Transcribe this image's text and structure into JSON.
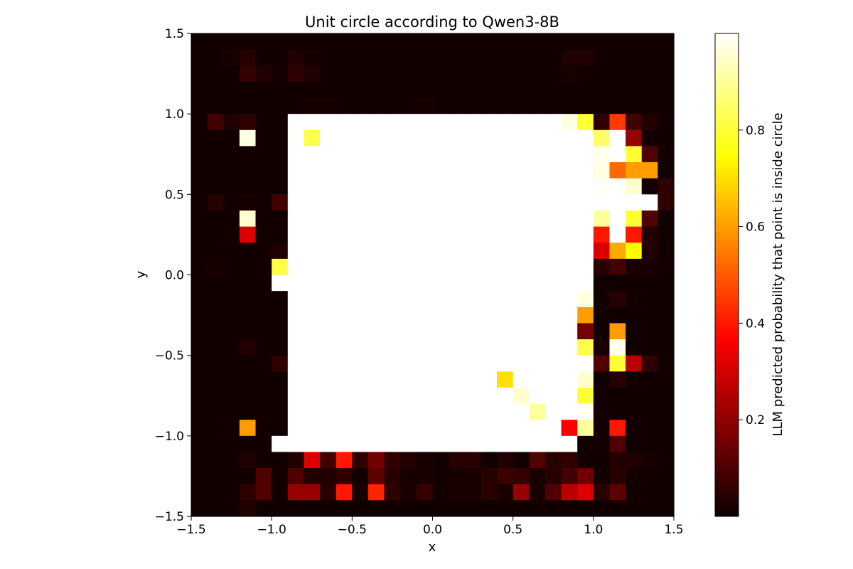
{
  "chart_data": {
    "type": "heatmap",
    "title": "Unit circle according to Qwen3-8B",
    "xlabel": "x",
    "ylabel": "y",
    "xlim": [
      -1.5,
      1.5
    ],
    "ylim": [
      -1.5,
      1.5
    ],
    "x_ticks": [
      "−1.5",
      "−1.0",
      "−0.5",
      "0.0",
      "0.5",
      "1.0",
      "1.5"
    ],
    "y_ticks": [
      "1.5",
      "1.0",
      "0.5",
      "0.0",
      "−0.5",
      "−1.0",
      "−1.5"
    ],
    "x_tick_values": [
      -1.5,
      -1.0,
      -0.5,
      0.0,
      0.5,
      1.0,
      1.5
    ],
    "y_tick_values": [
      1.5,
      1.0,
      0.5,
      0.0,
      -0.5,
      -1.0,
      -1.5
    ],
    "colormap": "hot",
    "colorbar": {
      "label": "LLM predicted probability that point is inside circle",
      "ticks": [
        "0.2",
        "0.4",
        "0.6",
        "0.8"
      ],
      "tick_values": [
        0.2,
        0.4,
        0.6,
        0.8
      ],
      "range": [
        0.0,
        1.0
      ]
    },
    "grid": false,
    "cell_size": 0.1,
    "rows_note": "values[0] is the top row (y from 1.4 to 1.5); values[i][j] spans x from -1.5+0.1*j",
    "values": [
      [
        0.01,
        0.01,
        0.01,
        0.01,
        0.01,
        0.01,
        0.01,
        0.01,
        0.01,
        0.01,
        0.01,
        0.01,
        0.01,
        0.01,
        0.01,
        0.01,
        0.01,
        0.01,
        0.01,
        0.01,
        0.01,
        0.01,
        0.01,
        0.01,
        0.01,
        0.01,
        0.01,
        0.01,
        0.01,
        0.01
      ],
      [
        0.01,
        0.01,
        0.02,
        0.04,
        0.01,
        0.01,
        0.03,
        0.02,
        0.01,
        0.01,
        0.01,
        0.01,
        0.01,
        0.01,
        0.01,
        0.01,
        0.01,
        0.01,
        0.01,
        0.01,
        0.01,
        0.01,
        0.01,
        0.03,
        0.03,
        0.01,
        0.01,
        0.01,
        0.01,
        0.01
      ],
      [
        0.01,
        0.01,
        0.01,
        0.06,
        0.03,
        0.01,
        0.05,
        0.03,
        0.01,
        0.01,
        0.01,
        0.01,
        0.01,
        0.01,
        0.01,
        0.01,
        0.01,
        0.01,
        0.01,
        0.01,
        0.01,
        0.01,
        0.01,
        0.02,
        0.01,
        0.01,
        0.01,
        0.01,
        0.01,
        0.01
      ],
      [
        0.01,
        0.01,
        0.01,
        0.01,
        0.01,
        0.01,
        0.01,
        0.01,
        0.01,
        0.01,
        0.01,
        0.01,
        0.01,
        0.01,
        0.01,
        0.01,
        0.01,
        0.01,
        0.01,
        0.01,
        0.01,
        0.01,
        0.01,
        0.01,
        0.01,
        0.01,
        0.01,
        0.01,
        0.01,
        0.01
      ],
      [
        0.01,
        0.01,
        0.01,
        0.01,
        0.01,
        0.01,
        0.01,
        0.02,
        0.02,
        0.01,
        0.01,
        0.01,
        0.01,
        0.01,
        0.02,
        0.01,
        0.01,
        0.01,
        0.01,
        0.01,
        0.01,
        0.01,
        0.01,
        0.01,
        0.01,
        0.01,
        0.01,
        0.01,
        0.01,
        0.01
      ],
      [
        0.01,
        0.08,
        0.03,
        0.05,
        0.01,
        0.01,
        1,
        1,
        1,
        1,
        1,
        1,
        1,
        1,
        1,
        1,
        1,
        1,
        1,
        1,
        1,
        1,
        1,
        0.97,
        0.8,
        0.05,
        0.45,
        0.08,
        0.03,
        0.01
      ],
      [
        0.01,
        0.01,
        0.01,
        0.97,
        0.01,
        0.01,
        1,
        0.82,
        1,
        1,
        1,
        1,
        1,
        1,
        1,
        1,
        1,
        1,
        1,
        1,
        1,
        1,
        1,
        1,
        1,
        0.85,
        1,
        0.2,
        0.01,
        0.01
      ],
      [
        0.01,
        0.01,
        0.01,
        0.01,
        0.01,
        0.01,
        1,
        1,
        1,
        1,
        1,
        1,
        1,
        1,
        1,
        1,
        1,
        1,
        1,
        1,
        1,
        1,
        1,
        1,
        1,
        0.98,
        1,
        0.8,
        0.1,
        0.01
      ],
      [
        0.01,
        0.01,
        0.01,
        0.01,
        0.01,
        0.01,
        1,
        1,
        1,
        1,
        1,
        1,
        1,
        1,
        1,
        1,
        1,
        1,
        1,
        1,
        1,
        1,
        1,
        1,
        1,
        0.97,
        0.52,
        0.6,
        0.6,
        0.01
      ],
      [
        0.01,
        0.01,
        0.01,
        0.01,
        0.01,
        0.01,
        1,
        1,
        1,
        1,
        1,
        1,
        1,
        1,
        1,
        1,
        1,
        1,
        1,
        1,
        1,
        1,
        1,
        1,
        1,
        0.99,
        1,
        0.95,
        0.01,
        0.05
      ],
      [
        0.01,
        0.04,
        0.01,
        0.02,
        0.01,
        0.08,
        1,
        1,
        1,
        1,
        1,
        1,
        1,
        1,
        1,
        1,
        1,
        1,
        1,
        1,
        1,
        1,
        1,
        1,
        1,
        1,
        1,
        1,
        1,
        0.05
      ],
      [
        0.01,
        0.01,
        0.01,
        0.95,
        0.01,
        0.01,
        1,
        1,
        1,
        1,
        1,
        1,
        1,
        1,
        1,
        1,
        1,
        1,
        1,
        1,
        1,
        1,
        1,
        1,
        1,
        0.9,
        1,
        0.8,
        0.1,
        0.01
      ],
      [
        0.01,
        0.01,
        0.01,
        0.3,
        0.01,
        0.01,
        1,
        1,
        1,
        1,
        1,
        1,
        1,
        1,
        1,
        1,
        1,
        1,
        1,
        1,
        1,
        1,
        1,
        1,
        1,
        0.4,
        1,
        0.4,
        0.03,
        0.01
      ],
      [
        0.01,
        0.01,
        0.01,
        0.01,
        0.01,
        0.03,
        1,
        1,
        1,
        1,
        1,
        1,
        1,
        1,
        1,
        1,
        1,
        1,
        1,
        1,
        1,
        1,
        1,
        1,
        1,
        0.3,
        0.62,
        0.75,
        0.03,
        0.01
      ],
      [
        0.01,
        0.02,
        0.01,
        0.01,
        0.01,
        0.82,
        1,
        1,
        1,
        1,
        1,
        1,
        1,
        1,
        1,
        1,
        1,
        1,
        1,
        1,
        1,
        1,
        1,
        1,
        1,
        0.04,
        0.08,
        0.02,
        0.02,
        0.01
      ],
      [
        0.01,
        0.01,
        0.01,
        0.01,
        0.01,
        1,
        1,
        1,
        1,
        1,
        1,
        1,
        1,
        1,
        1,
        1,
        1,
        1,
        1,
        1,
        1,
        1,
        1,
        1,
        1,
        0.01,
        0.01,
        0.01,
        0.01,
        0.01
      ],
      [
        0.01,
        0.01,
        0.01,
        0.01,
        0.01,
        0.01,
        1,
        1,
        1,
        1,
        1,
        1,
        1,
        1,
        1,
        1,
        1,
        1,
        1,
        1,
        1,
        1,
        1,
        1,
        0.97,
        0.01,
        0.04,
        0.01,
        0.01,
        0.01
      ],
      [
        0.01,
        0.01,
        0.01,
        0.01,
        0.01,
        0.01,
        1,
        1,
        1,
        1,
        1,
        1,
        1,
        1,
        1,
        1,
        1,
        1,
        1,
        1,
        1,
        1,
        1,
        1,
        0.6,
        0.01,
        0.01,
        0.01,
        0.01,
        0.01
      ],
      [
        0.01,
        0.01,
        0.01,
        0.01,
        0.01,
        0.01,
        1,
        1,
        1,
        1,
        1,
        1,
        1,
        1,
        1,
        1,
        1,
        1,
        1,
        1,
        1,
        1,
        1,
        1,
        0.15,
        0.01,
        0.6,
        0.01,
        0.01,
        0.01
      ],
      [
        0.01,
        0.01,
        0.01,
        0.03,
        0.01,
        0.01,
        1,
        1,
        1,
        1,
        1,
        1,
        1,
        1,
        1,
        1,
        1,
        1,
        1,
        1,
        1,
        1,
        1,
        1,
        0.82,
        0.02,
        0.98,
        0.01,
        0.01,
        0.01
      ],
      [
        0.01,
        0.01,
        0.01,
        0.01,
        0.01,
        0.05,
        1,
        1,
        1,
        1,
        1,
        1,
        1,
        1,
        1,
        1,
        1,
        1,
        1,
        1,
        1,
        1,
        1,
        1,
        1,
        0.1,
        0.8,
        0.25,
        0.05,
        0.01
      ],
      [
        0.01,
        0.01,
        0.01,
        0.01,
        0.01,
        0.01,
        1,
        1,
        1,
        1,
        1,
        1,
        1,
        1,
        1,
        1,
        1,
        1,
        1,
        0.7,
        1,
        1,
        1,
        1,
        0.95,
        0.01,
        0.04,
        0.01,
        0.01,
        0.01
      ],
      [
        0.01,
        0.01,
        0.01,
        0.01,
        0.01,
        0.01,
        1,
        1,
        1,
        1,
        1,
        1,
        1,
        1,
        1,
        1,
        1,
        1,
        1,
        1,
        0.95,
        1,
        1,
        1,
        0.8,
        0.01,
        0.01,
        0.01,
        0.01,
        0.01
      ],
      [
        0.01,
        0.01,
        0.01,
        0.01,
        0.01,
        0.01,
        1,
        1,
        1,
        1,
        1,
        1,
        1,
        1,
        1,
        1,
        1,
        1,
        1,
        1,
        1,
        0.9,
        1,
        1,
        0.99,
        0.01,
        0.01,
        0.01,
        0.01,
        0.01
      ],
      [
        0.01,
        0.01,
        0.01,
        0.6,
        0.01,
        0.01,
        1,
        1,
        1,
        1,
        1,
        1,
        1,
        1,
        1,
        1,
        1,
        1,
        1,
        1,
        1,
        1,
        1,
        0.35,
        0.9,
        0.01,
        0.4,
        0.01,
        0.01,
        0.01
      ],
      [
        0.01,
        0.01,
        0.01,
        0.01,
        0.01,
        1,
        1,
        1,
        1,
        1,
        1,
        1,
        1,
        1,
        1,
        1,
        1,
        1,
        1,
        1,
        1,
        1,
        1,
        1,
        0.01,
        0.01,
        0.1,
        0.01,
        0.01,
        0.01
      ],
      [
        0.01,
        0.01,
        0.01,
        0.03,
        0.01,
        0.01,
        0.03,
        0.3,
        0.08,
        0.4,
        0.05,
        0.15,
        0.05,
        0.03,
        0.02,
        0.01,
        0.04,
        0.04,
        0.01,
        0.03,
        0.01,
        0.1,
        0.04,
        0.05,
        0.01,
        0.01,
        0.03,
        0.03,
        0.02,
        0.01
      ],
      [
        0.01,
        0.01,
        0.01,
        0.01,
        0.1,
        0.01,
        0.1,
        0.03,
        0.03,
        0.05,
        0.01,
        0.12,
        0.04,
        0.02,
        0.02,
        0.01,
        0.02,
        0.02,
        0.04,
        0.07,
        0.06,
        0.02,
        0.04,
        0.08,
        0.15,
        0.01,
        0.04,
        0.01,
        0.01,
        0.01
      ],
      [
        0.01,
        0.01,
        0.01,
        0.05,
        0.1,
        0.01,
        0.2,
        0.2,
        0.04,
        0.4,
        0.02,
        0.42,
        0.05,
        0.02,
        0.06,
        0.01,
        0.02,
        0.02,
        0.04,
        0.02,
        0.2,
        0.02,
        0.1,
        0.25,
        0.3,
        0.04,
        0.12,
        0.01,
        0.01,
        0.01
      ],
      [
        0.01,
        0.01,
        0.01,
        0.03,
        0.01,
        0.01,
        0.01,
        0.01,
        0.01,
        0.01,
        0.01,
        0.01,
        0.01,
        0.01,
        0.01,
        0.01,
        0.01,
        0.01,
        0.01,
        0.01,
        0.01,
        0.01,
        0.01,
        0.01,
        0.01,
        0.01,
        0.01,
        0.01,
        0.01,
        0.01
      ]
    ]
  }
}
